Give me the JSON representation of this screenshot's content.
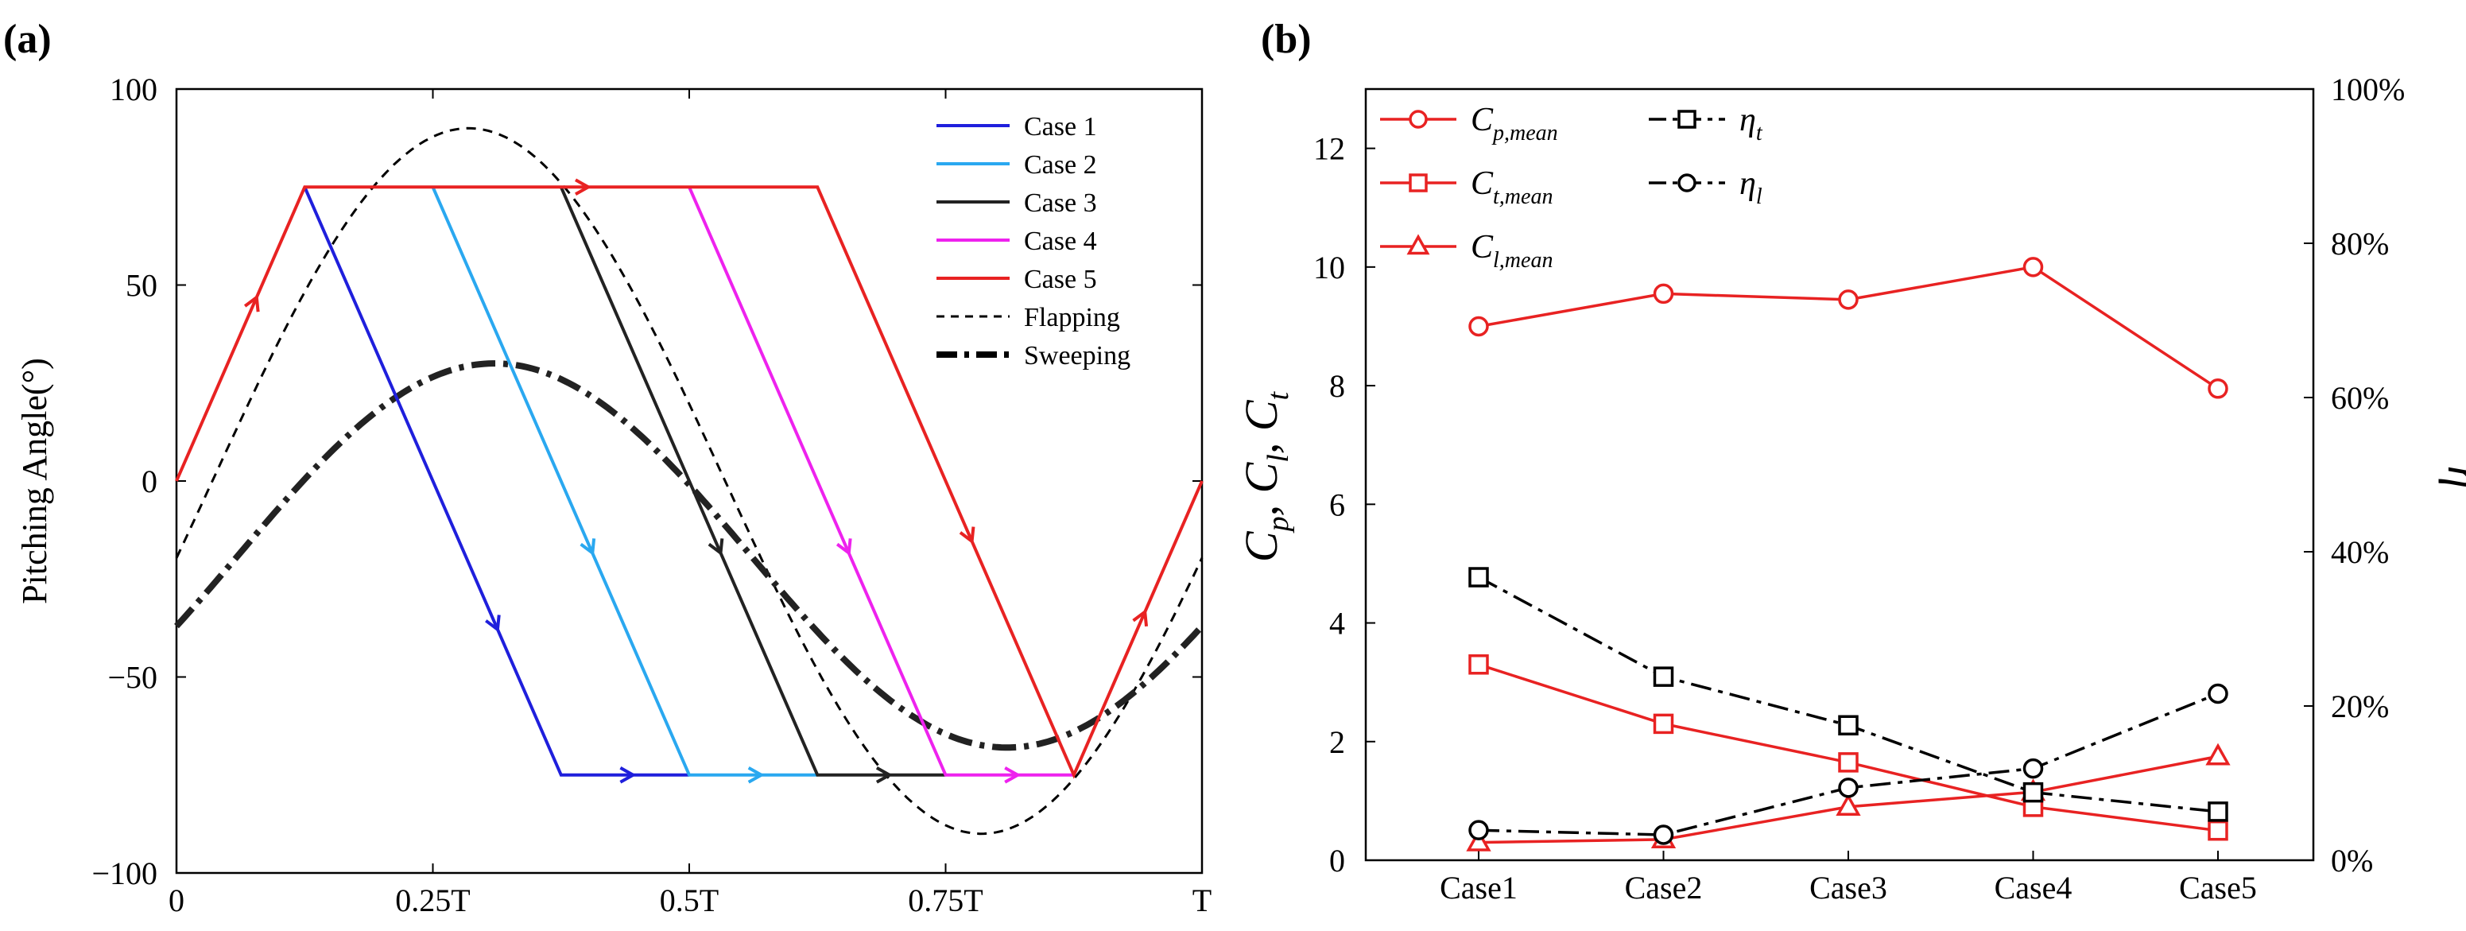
{
  "figure": {
    "panel_a_label": "(a)",
    "panel_b_label": "(b)"
  },
  "chart_data": [
    {
      "type": "line",
      "title": "",
      "xlabel": "",
      "ylabel": "Pitching Angle(°)",
      "xlim": [
        0,
        1
      ],
      "ylim": [
        -100,
        100
      ],
      "x_ticks": [
        {
          "v": 0,
          "label": "0"
        },
        {
          "v": 0.25,
          "label": "0.25T"
        },
        {
          "v": 0.5,
          "label": "0.5T"
        },
        {
          "v": 0.75,
          "label": "0.75T"
        },
        {
          "v": 1,
          "label": "T"
        }
      ],
      "y_ticks": [
        {
          "v": -100,
          "label": "−100"
        },
        {
          "v": -50,
          "label": "−50"
        },
        {
          "v": 0,
          "label": "0"
        },
        {
          "v": 50,
          "label": "50"
        },
        {
          "v": 100,
          "label": "100"
        }
      ],
      "series": [
        {
          "name": "Case 1",
          "color": "#1f1fdc",
          "x": [
            0.125,
            0.375,
            0.5
          ],
          "y": [
            75,
            -75,
            -75
          ],
          "arrows": [
            {
              "a": 0,
              "b": 1,
              "f": 0.75
            },
            {
              "a": 1,
              "b": 2,
              "f": 0.55
            }
          ]
        },
        {
          "name": "Case 2",
          "color": "#2aa8f0",
          "x": [
            0.25,
            0.5,
            0.625
          ],
          "y": [
            75,
            -75,
            -75
          ],
          "arrows": [
            {
              "a": 0,
              "b": 1,
              "f": 0.62
            },
            {
              "a": 1,
              "b": 2,
              "f": 0.55
            }
          ]
        },
        {
          "name": "Case 3",
          "color": "#222222",
          "x": [
            0.375,
            0.625,
            0.75
          ],
          "y": [
            75,
            -75,
            -75
          ],
          "arrows": [
            {
              "a": 0,
              "b": 1,
              "f": 0.62
            },
            {
              "a": 1,
              "b": 2,
              "f": 0.55
            }
          ]
        },
        {
          "name": "Case 4",
          "color": "#ee22ee",
          "x": [
            0.5,
            0.75,
            0.875
          ],
          "y": [
            75,
            -75,
            -75
          ],
          "arrows": [
            {
              "a": 0,
              "b": 1,
              "f": 0.62
            },
            {
              "a": 1,
              "b": 2,
              "f": 0.55
            }
          ]
        },
        {
          "name": "Case 5",
          "color": "#e82222",
          "x": [
            0,
            0.125,
            0.625,
            0.875,
            1
          ],
          "y": [
            0,
            75,
            75,
            -75,
            0
          ],
          "arrows": [
            {
              "a": 0,
              "b": 1,
              "f": 0.62
            },
            {
              "a": 1,
              "b": 2,
              "f": 0.55
            },
            {
              "a": 2,
              "b": 3,
              "f": 0.6
            },
            {
              "a": 3,
              "b": 4,
              "f": 0.55
            }
          ]
        },
        {
          "name": "Flapping",
          "color": "#000000",
          "style": "dashed",
          "function": "90*sin(2*pi*(t-0.035))",
          "x_range": [
            0,
            1
          ]
        },
        {
          "name": "Sweeping",
          "color": "#000000",
          "style": "dashdot",
          "function": "-19 + 49*cos(2*pi*(t-0.31))",
          "x_range": [
            0,
            1
          ]
        }
      ],
      "legend": {
        "position": "top-right"
      }
    },
    {
      "type": "line",
      "title": "",
      "categories": [
        "Case1",
        "Case2",
        "Case3",
        "Case4",
        "Case5"
      ],
      "ylabel_left": "Cp, Cl, Ct",
      "ylabel_right": "η",
      "ylim_left": [
        0,
        13
      ],
      "ylim_right": [
        0,
        100
      ],
      "y_ticks_left": [
        "0",
        "2",
        "4",
        "6",
        "8",
        "10",
        "12"
      ],
      "y_ticks_right": [
        "0%",
        "20%",
        "40%",
        "60%",
        "80%",
        "100%"
      ],
      "series": [
        {
          "name": "Cp,mean",
          "axis": "left",
          "color": "#e82222",
          "marker": "circle",
          "style": "solid",
          "values": [
            9.0,
            9.55,
            9.45,
            10.0,
            7.95
          ]
        },
        {
          "name": "Ct,mean",
          "axis": "left",
          "color": "#e82222",
          "marker": "square",
          "style": "solid",
          "values": [
            3.3,
            2.3,
            1.65,
            0.9,
            0.5
          ]
        },
        {
          "name": "Cl,mean",
          "axis": "left",
          "color": "#e82222",
          "marker": "triangle",
          "style": "solid",
          "values": [
            0.3,
            0.35,
            0.9,
            1.15,
            1.75
          ]
        },
        {
          "name": "ηt",
          "axis": "right",
          "color": "#000000",
          "marker": "square",
          "style": "dashdot",
          "values": [
            36.7,
            23.8,
            17.5,
            8.8,
            6.3
          ]
        },
        {
          "name": "ηl",
          "axis": "right",
          "color": "#000000",
          "marker": "circle",
          "style": "dashdot",
          "values": [
            3.9,
            3.3,
            9.4,
            11.9,
            21.6
          ]
        }
      ],
      "legend": {
        "position": "top-left"
      }
    }
  ]
}
